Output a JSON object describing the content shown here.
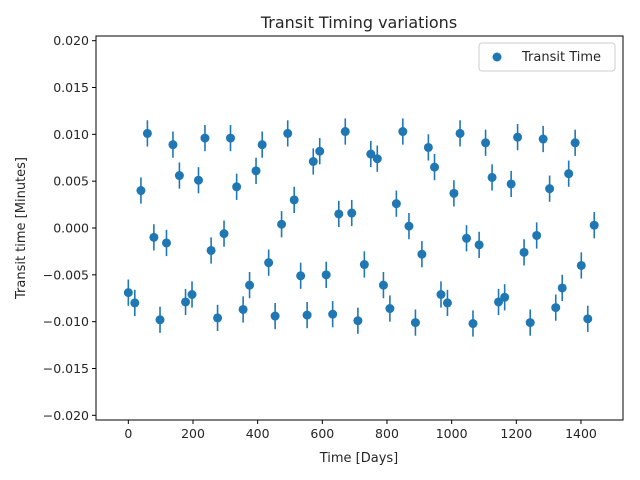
{
  "chart_data": {
    "type": "scatter",
    "title": "Transit Timing variations",
    "xlabel": "Time [Days]",
    "ylabel": "Transit time [Minutes]",
    "xlim": [
      -100,
      1530
    ],
    "ylim": [
      -0.0205,
      0.0205
    ],
    "xticks": [
      0,
      200,
      400,
      600,
      800,
      1000,
      1200,
      1400
    ],
    "xtick_labels": [
      "0",
      "200",
      "400",
      "600",
      "800",
      "1000",
      "1200",
      "1400"
    ],
    "yticks": [
      -0.02,
      -0.015,
      -0.01,
      -0.005,
      0.0,
      0.005,
      0.01,
      0.015,
      0.02
    ],
    "ytick_labels": [
      "−0.020",
      "−0.015",
      "−0.010",
      "−0.005",
      "0.000",
      "0.005",
      "0.010",
      "0.015",
      "0.020"
    ],
    "grid": false,
    "legend": {
      "position": "top-right"
    },
    "color": "#1f77b4",
    "series": [
      {
        "name": "Transit Time",
        "error": 0.0014,
        "x": [
          0,
          20,
          39,
          59,
          79,
          98,
          118,
          138,
          158,
          177,
          197,
          217,
          237,
          256,
          276,
          296,
          316,
          335,
          355,
          375,
          395,
          414,
          434,
          454,
          474,
          493,
          513,
          533,
          553,
          572,
          592,
          612,
          632,
          651,
          671,
          691,
          710,
          730,
          750,
          770,
          789,
          809,
          829,
          849,
          868,
          888,
          908,
          928,
          947,
          967,
          987,
          1007,
          1026,
          1046,
          1066,
          1085,
          1105,
          1125,
          1145,
          1164,
          1184,
          1204,
          1224,
          1243,
          1263,
          1283,
          1303,
          1322,
          1342,
          1362,
          1382,
          1401,
          1421,
          1441
        ],
        "y": [
          -0.0069,
          -0.008,
          0.004,
          0.0101,
          -0.001,
          -0.0098,
          -0.0016,
          0.0089,
          0.0056,
          -0.0079,
          -0.0071,
          0.0051,
          0.0096,
          -0.0024,
          -0.0096,
          -0.0006,
          0.0096,
          0.0044,
          -0.0087,
          -0.0061,
          0.0061,
          0.0089,
          -0.0037,
          -0.0094,
          0.0004,
          0.0101,
          0.003,
          -0.0051,
          -0.0093,
          0.0071,
          0.0082,
          -0.005,
          -0.0092,
          0.0015,
          0.0103,
          0.0016,
          -0.0099,
          -0.0039,
          0.0079,
          0.0074,
          -0.0061,
          -0.0086,
          0.0026,
          0.0103,
          0.0002,
          -0.0101,
          -0.0028,
          0.0086,
          0.0065,
          -0.0071,
          -0.008,
          0.0037,
          0.0101,
          -0.0011,
          -0.0102,
          -0.0018,
          0.0091,
          0.0054,
          -0.0079,
          -0.0074,
          0.0047,
          0.0097,
          -0.0026,
          -0.0101,
          -0.0008,
          0.0095,
          0.0042,
          -0.0085,
          -0.0064,
          0.0058,
          0.0091,
          -0.004,
          -0.0097,
          0.0003
        ]
      }
    ]
  }
}
